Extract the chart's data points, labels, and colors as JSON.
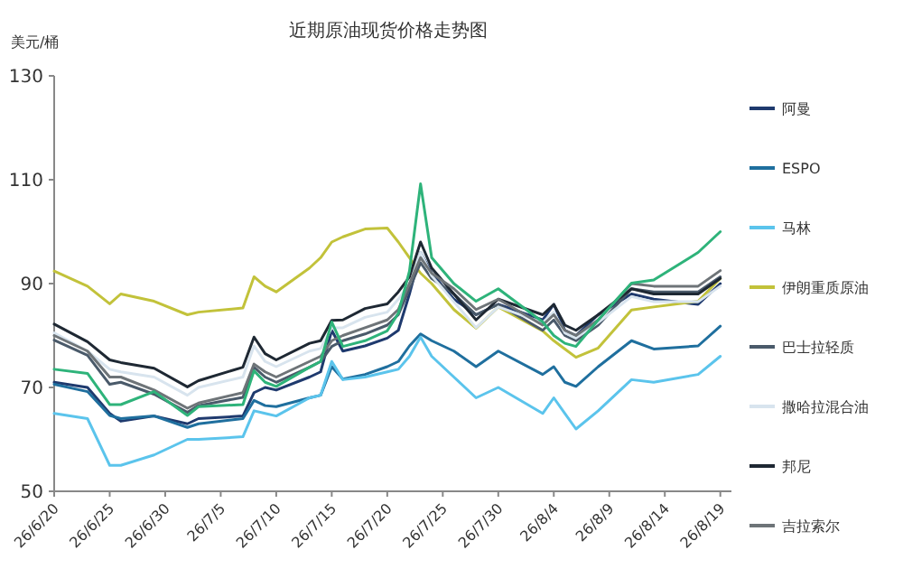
{
  "chart_data": {
    "type": "line",
    "title": "近期原油现货价格走势图",
    "ylabel": "美元/桶",
    "legend": "right",
    "x": [
      "--06-20",
      "--06-23",
      "--06-25",
      "--06-26",
      "--06-29",
      "--07-02",
      "--07-03",
      "--07-07",
      "--07-08",
      "--07-09",
      "--07-10",
      "--07-13",
      "--07-14",
      "--07-15",
      "--07-16",
      "--07-18",
      "--07-20",
      "--07-21",
      "--07-22",
      "--07-23",
      "--07-24",
      "--07-26",
      "--07-28",
      "--07-30",
      "--08-03",
      "--08-04",
      "--08-05",
      "--08-06",
      "--08-08",
      "--08-11",
      "--08-13",
      "--08-17",
      "--08-19"
    ],
    "xlim": [
      "--06-20",
      "--08-20"
    ],
    "xticks": [
      {
        "value": "--06-20",
        "label": "26/6/20"
      },
      {
        "value": "--06-25",
        "label": "26/6/25"
      },
      {
        "value": "--06-30",
        "label": "26/6/30"
      },
      {
        "value": "--07-05",
        "label": "26/7/5"
      },
      {
        "value": "--07-10",
        "label": "26/7/10"
      },
      {
        "value": "--07-15",
        "label": "26/7/15"
      },
      {
        "value": "--07-20",
        "label": "26/7/20"
      },
      {
        "value": "--07-25",
        "label": "26/7/25"
      },
      {
        "value": "--07-30",
        "label": "26/7/30"
      },
      {
        "value": "--08-04",
        "label": "26/8/4"
      },
      {
        "value": "--08-09",
        "label": "26/8/9"
      },
      {
        "value": "--08-14",
        "label": "26/8/14"
      },
      {
        "value": "--08-19",
        "label": "26/8/19"
      }
    ],
    "ylim": [
      50,
      130
    ],
    "yticks": [
      50,
      70,
      90,
      110,
      130
    ],
    "series": [
      {
        "name": "阿曼",
        "color": "#1f3a6e",
        "values": [
          71,
          70,
          65,
          63.5,
          64.5,
          63,
          64,
          64.5,
          69,
          70,
          69.5,
          72,
          73,
          81,
          77,
          78,
          79.5,
          81,
          88,
          96,
          92,
          87,
          84,
          86,
          83,
          86,
          81,
          80,
          84,
          88,
          87,
          86,
          90
        ]
      },
      {
        "name": "ESPO",
        "color": "#1f6f9e",
        "values": [
          70.6,
          69.2,
          64.6,
          64,
          64.5,
          62.3,
          63,
          64,
          67.5,
          66.5,
          66.3,
          68,
          68.5,
          74,
          71.6,
          72.5,
          74,
          75,
          78,
          80.3,
          79,
          77,
          74,
          77,
          72.5,
          74,
          71,
          70.2,
          74,
          79,
          77.4,
          78,
          81.8
        ]
      },
      {
        "name": "马林",
        "color": "#5bc4ec",
        "values": [
          65,
          64,
          55,
          55,
          57,
          60,
          60,
          60.5,
          65.5,
          65,
          64.5,
          68,
          68.5,
          75,
          71.5,
          72,
          73,
          73.5,
          76,
          79.7,
          76,
          72,
          68,
          70,
          65,
          68,
          65,
          62,
          65.5,
          71.5,
          71,
          72.5,
          76
        ]
      },
      {
        "name": "伊朗重质原油",
        "color": "#c2c23a",
        "values": [
          92.4,
          89.5,
          86.1,
          88,
          86.6,
          84,
          84.5,
          85.3,
          91.3,
          89.5,
          88.4,
          93,
          95,
          98,
          99,
          100.5,
          100.7,
          98,
          95,
          92,
          90,
          85,
          81.4,
          85.5,
          80.9,
          79,
          77.4,
          75.8,
          77.6,
          84.9,
          85.5,
          86.6,
          91
        ]
      },
      {
        "name": "巴士拉轻质",
        "color": "#4a5a6a",
        "values": [
          79.1,
          76.2,
          70.6,
          71,
          68.7,
          65.2,
          66.5,
          68.1,
          73.9,
          72,
          71,
          73.9,
          75,
          77.9,
          79,
          80.3,
          82,
          84,
          89,
          94,
          91,
          88,
          84,
          86,
          81,
          83,
          80,
          79,
          82,
          89,
          88.4,
          88.4,
          91.3
        ]
      },
      {
        "name": "撒哈拉混合油",
        "color": "#d8e4ee",
        "values": [
          80.5,
          77,
          73.5,
          73,
          72,
          68.5,
          70,
          72,
          78,
          75,
          74,
          77,
          77.5,
          81.5,
          81.5,
          83.5,
          84.5,
          87,
          90,
          96,
          91.5,
          86.5,
          81.5,
          85.5,
          82.5,
          84.5,
          80.5,
          79.5,
          82.5,
          87.5,
          86.5,
          86.5,
          89.5
        ]
      },
      {
        "name": "邦尼",
        "color": "#1e2833",
        "values": [
          82.2,
          78.8,
          75.3,
          74.8,
          73.7,
          70.1,
          71.3,
          73.9,
          79.7,
          76.5,
          75.3,
          78.5,
          79,
          82.9,
          83,
          85.2,
          86.1,
          88.4,
          91.3,
          98,
          93,
          88,
          83,
          87,
          84,
          86,
          82,
          81,
          84,
          89,
          88,
          88,
          91
        ]
      },
      {
        "name": "吉拉索尔",
        "color": "#6e7478",
        "values": [
          80,
          77,
          72,
          72,
          69.5,
          66,
          67,
          69,
          74.5,
          73,
          72,
          75,
          76,
          79,
          80,
          81.5,
          83,
          85,
          90,
          95,
          92,
          89,
          85,
          87,
          82,
          84,
          81,
          80,
          83,
          90,
          89.5,
          89.5,
          92.5
        ]
      },
      {
        "color": "#2eb37a",
        "values": [
          73.5,
          72.7,
          66.7,
          66.7,
          69.2,
          64.6,
          66.3,
          66.7,
          73.2,
          71,
          70.2,
          73.9,
          75,
          82.6,
          77.9,
          79,
          80.9,
          84.3,
          92.4,
          109.2,
          95,
          90,
          86.6,
          89,
          82.6,
          80,
          78.5,
          77.9,
          83,
          90.1,
          90.7,
          96,
          100
        ]
      }
    ]
  }
}
